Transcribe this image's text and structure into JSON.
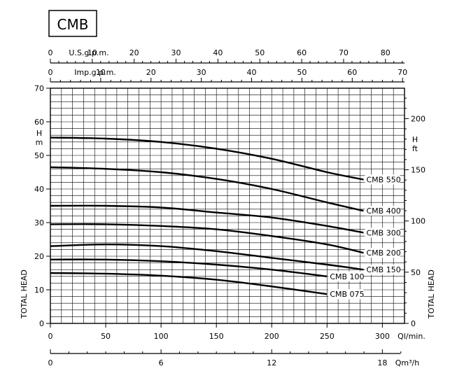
{
  "title": "CMB",
  "chart_data": {
    "type": "line",
    "title": "CMB",
    "xlabel": "Ql/min.",
    "ylabel": "TOTAL HEAD",
    "xlim": [
      0,
      320
    ],
    "ylim": [
      0,
      70
    ],
    "grid": true,
    "x_ticks": [
      "0",
      "50",
      "100",
      "150",
      "200",
      "250",
      "300"
    ],
    "y_ticks": [
      "0",
      "10",
      "20",
      "30",
      "40",
      "50",
      "60",
      "70"
    ],
    "y_unit": "H\nm",
    "top_axis_us": {
      "label": "U.S.g.p.m.",
      "ticks": [
        "0",
        "10",
        "20",
        "30",
        "40",
        "50",
        "60",
        "70",
        "80"
      ],
      "values": [
        0,
        10,
        20,
        30,
        40,
        50,
        60,
        70,
        80
      ]
    },
    "top_axis_imp": {
      "label": "Imp.g.p.m.",
      "ticks": [
        "0",
        "10",
        "20",
        "30",
        "40",
        "50",
        "60",
        "70"
      ],
      "values": [
        0,
        10,
        20,
        30,
        40,
        50,
        60,
        70
      ]
    },
    "bottom_axis_m3h": {
      "label": "Qm³/h",
      "ticks": [
        "0",
        "6",
        "12",
        "18"
      ],
      "values": [
        0,
        6,
        12,
        18
      ]
    },
    "right_axis_ft": {
      "label": "TOTAL HEAD",
      "unit": "H\nft",
      "ticks": [
        "0",
        "50",
        "100",
        "150",
        "200"
      ],
      "values": [
        0,
        50,
        100,
        150,
        200
      ]
    },
    "series": [
      {
        "name": "CMB 550",
        "x": [
          0,
          50,
          100,
          150,
          200,
          250,
          283
        ],
        "y": [
          55.3,
          55,
          54,
          52,
          49,
          45,
          42.8
        ]
      },
      {
        "name": "CMB 400",
        "x": [
          0,
          50,
          100,
          150,
          200,
          250,
          283
        ],
        "y": [
          46.5,
          46,
          45,
          43,
          40,
          36,
          33.5
        ]
      },
      {
        "name": "CMB 300",
        "x": [
          0,
          50,
          100,
          150,
          200,
          250,
          283
        ],
        "y": [
          35,
          35,
          34.5,
          33,
          31.5,
          29,
          27
        ]
      },
      {
        "name": "CMB 200",
        "x": [
          0,
          50,
          100,
          150,
          200,
          250,
          283
        ],
        "y": [
          29.5,
          29.5,
          29,
          28,
          26,
          23.5,
          21
        ]
      },
      {
        "name": "CMB 150",
        "x": [
          0,
          50,
          100,
          150,
          200,
          250,
          283
        ],
        "y": [
          23,
          23.5,
          23,
          21.5,
          19.5,
          17.5,
          16
        ]
      },
      {
        "name": "CMB 100",
        "x": [
          0,
          50,
          100,
          150,
          200,
          250
        ],
        "y": [
          19,
          19,
          18.5,
          17.5,
          16,
          14
        ]
      },
      {
        "name": "CMB 075",
        "x": [
          0,
          50,
          100,
          150,
          200,
          250
        ],
        "y": [
          15,
          14.8,
          14.2,
          13,
          11,
          8.7
        ]
      }
    ]
  }
}
